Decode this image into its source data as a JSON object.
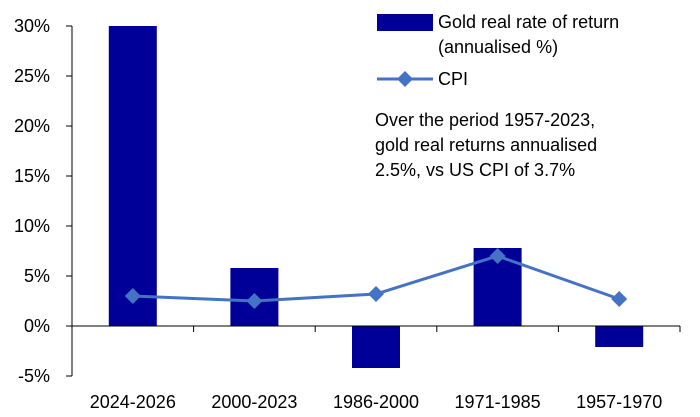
{
  "chart_data": {
    "type": "bar",
    "categories": [
      "2024-2026",
      "2000-2023",
      "1986-2000",
      "1971-1985",
      "1957-1970"
    ],
    "series": [
      {
        "name": "Gold real rate of return (annualised %)",
        "type": "bar",
        "values": [
          30,
          5.8,
          -4.2,
          7.8,
          -2.1
        ],
        "color": "#000099"
      },
      {
        "name": "CPI",
        "type": "line",
        "values": [
          3.0,
          2.5,
          3.2,
          7.0,
          2.7
        ],
        "color": "#4472C4"
      }
    ],
    "y_ticks": [
      "30%",
      "25%",
      "20%",
      "15%",
      "10%",
      "5%",
      "0%",
      "-5%"
    ],
    "ylim": [
      -5,
      30
    ],
    "legend": {
      "position": "top-right",
      "bar_label_lines": [
        "Gold real rate of return",
        "(annualised %)"
      ],
      "line_label": "CPI"
    },
    "annotation": {
      "lines": [
        "Over the period 1957-2023,",
        "gold real returns annualised",
        "2.5%, vs US CPI of 3.7%"
      ]
    },
    "grid": false
  }
}
